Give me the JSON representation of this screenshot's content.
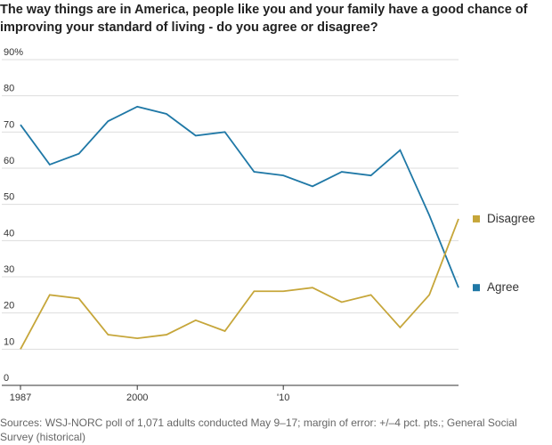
{
  "chart_data": {
    "type": "line",
    "title": "The way things are in America, people like you and your family have a good chance of improving your standard of living - do you agree or disagree?",
    "source": "Sources: WSJ-NORC poll of 1,071 adults conducted May 9–17; margin of error: +/–4 pct. pts.; General Social Survey (historical)",
    "categories": [
      "1987",
      null,
      null,
      null,
      "2000",
      null,
      null,
      null,
      null,
      "'10",
      null,
      null,
      null,
      null,
      null,
      null
    ],
    "series": [
      {
        "name": "Agree",
        "color": "#1f78a6",
        "values": [
          72,
          61,
          64,
          73,
          77,
          75,
          69,
          70,
          59,
          58,
          55,
          59,
          58,
          65,
          47,
          27
        ]
      },
      {
        "name": "Disagree",
        "color": "#c6a63a",
        "values": [
          10,
          25,
          24,
          14,
          13,
          14,
          18,
          15,
          26,
          26,
          27,
          23,
          25,
          16,
          25,
          46
        ]
      }
    ],
    "ylim": [
      0,
      90
    ],
    "yticks": [
      0,
      10,
      20,
      30,
      40,
      50,
      60,
      70,
      80,
      {
        "value": 90,
        "label": "90%"
      }
    ],
    "grid": true
  }
}
